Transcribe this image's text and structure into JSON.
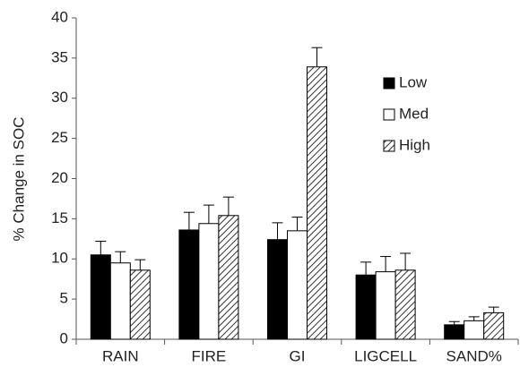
{
  "chart_data": {
    "type": "bar",
    "y_label": "% Change in SOC",
    "categories": [
      "RAIN",
      "FIRE",
      "GI",
      "LIGCELL",
      "SAND%"
    ],
    "series": [
      {
        "name": "Low",
        "color": "#000000",
        "values": [
          10.5,
          13.6,
          12.4,
          8.0,
          1.8
        ],
        "errors": [
          1.7,
          2.2,
          2.1,
          1.6,
          0.4
        ]
      },
      {
        "name": "Med",
        "color": "#ffffff",
        "values": [
          9.5,
          14.4,
          13.5,
          8.4,
          2.3
        ],
        "errors": [
          1.4,
          2.3,
          1.7,
          1.9,
          0.5
        ]
      },
      {
        "name": "High",
        "color": "#ffffff",
        "pattern": "hatch",
        "values": [
          8.6,
          15.4,
          33.9,
          8.6,
          3.3
        ],
        "errors": [
          1.3,
          2.3,
          2.4,
          2.1,
          0.7
        ]
      }
    ],
    "ylim": [
      0,
      40
    ],
    "yticks": [
      0,
      5,
      10,
      15,
      20,
      25,
      30,
      35,
      40
    ],
    "grid": false,
    "legend": "upper right"
  }
}
